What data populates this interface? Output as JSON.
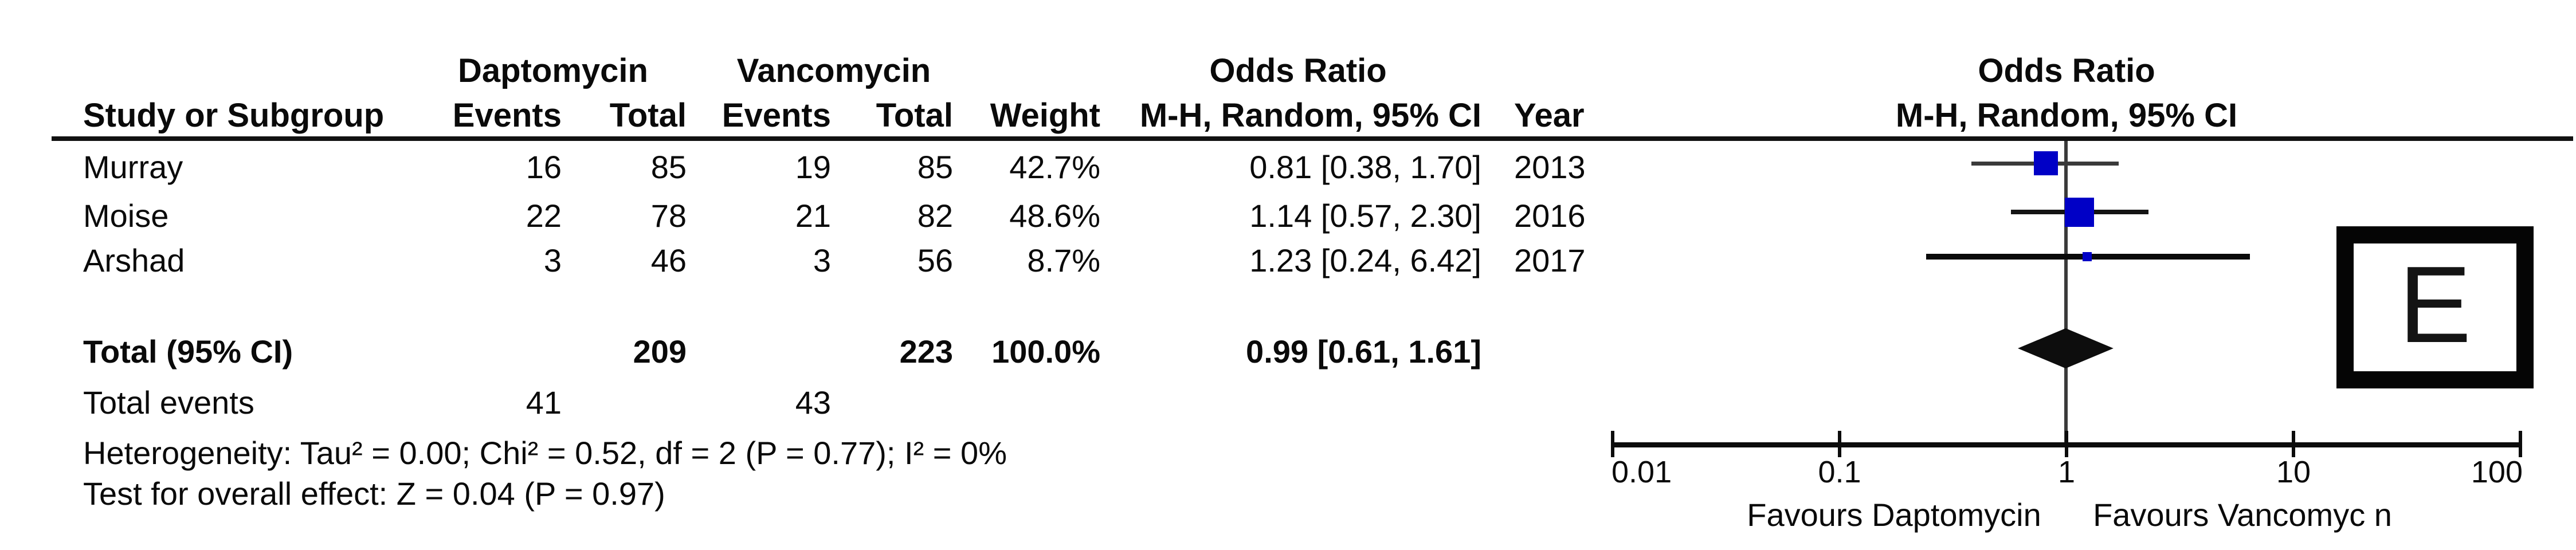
{
  "figure": {
    "panel_label": "E"
  },
  "table": {
    "group1": "Daptomycin",
    "group2": "Vancomycin",
    "or_header": "Odds Ratio",
    "col_study": "Study or Subgroup",
    "col_events": "Events",
    "col_total": "Total",
    "col_weight": "Weight",
    "col_mh": "M-H, Random, 95% CI",
    "col_year": "Year",
    "rows": [
      {
        "study": "Murray",
        "e1": "16",
        "t1": "85",
        "e2": "19",
        "t2": "85",
        "weight": "42.7%",
        "or": "0.81 [0.38, 1.70]",
        "year": "2013"
      },
      {
        "study": "Moise",
        "e1": "22",
        "t1": "78",
        "e2": "21",
        "t2": "82",
        "weight": "48.6%",
        "or": "1.14 [0.57, 2.30]",
        "year": "2016"
      },
      {
        "study": "Arshad",
        "e1": "3",
        "t1": "46",
        "e2": "3",
        "t2": "56",
        "weight": "8.7%",
        "or": "1.23 [0.24, 6.42]",
        "year": "2017"
      }
    ],
    "total_label": "Total (95% CI)",
    "total_t1": "209",
    "total_t2": "223",
    "total_weight": "100.0%",
    "total_or": "0.99 [0.61, 1.61]",
    "total_events_label": "Total events",
    "total_e1": "41",
    "total_e2": "43",
    "heterogeneity": "Heterogeneity: Tau² = 0.00; Chi² = 0.52, df = 2 (P = 0.77); I² = 0%",
    "overall": "Test for overall effect: Z = 0.04 (P = 0.97)"
  },
  "plot": {
    "title1": "Odds Ratio",
    "title2": "M-H, Random, 95% CI",
    "favours_left": "Favours Daptomycin",
    "favours_right": "Favours Vancomyc n",
    "marker_color": "#0000C6",
    "diamond_color": "#0d0d0d"
  },
  "chart_data": {
    "type": "scatter",
    "subtype": "forest-plot-odds-ratio",
    "x_scale": "log10",
    "x_ticks": [
      0.01,
      0.1,
      1,
      10,
      100
    ],
    "xlim": [
      0.01,
      100
    ],
    "studies": [
      {
        "name": "Murray",
        "or": 0.81,
        "ci_low": 0.38,
        "ci_high": 1.7,
        "weight_pct": 42.7,
        "year": 2013
      },
      {
        "name": "Moise",
        "or": 1.14,
        "ci_low": 0.57,
        "ci_high": 2.3,
        "weight_pct": 48.6,
        "year": 2016
      },
      {
        "name": "Arshad",
        "or": 1.23,
        "ci_low": 0.24,
        "ci_high": 6.42,
        "weight_pct": 8.7,
        "year": 2017
      }
    ],
    "total": {
      "or": 0.99,
      "ci_low": 0.61,
      "ci_high": 1.61,
      "weight_pct": 100.0
    },
    "method": "M-H, Random, 95% CI",
    "favours_left": "Favours Daptomycin",
    "favours_right": "Favours Vancomyc n"
  }
}
